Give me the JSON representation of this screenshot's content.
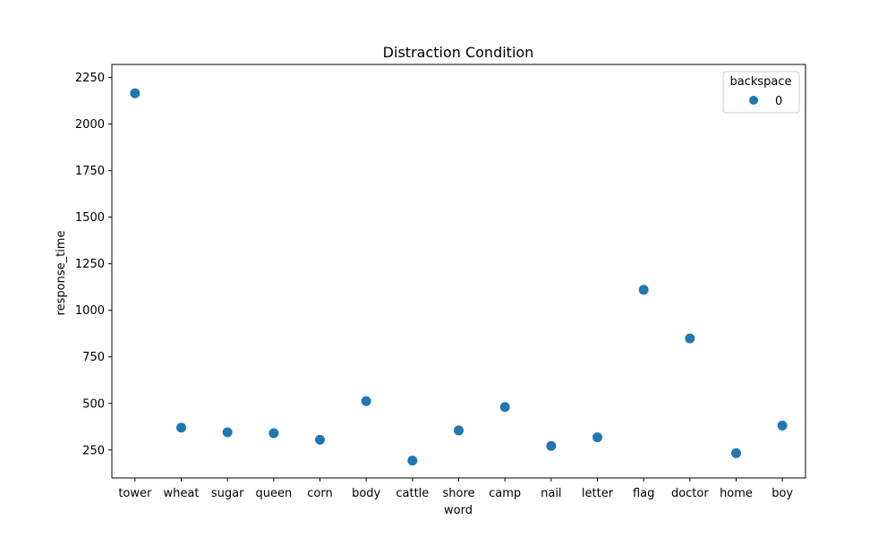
{
  "chart_data": {
    "type": "scatter",
    "title": "Distraction Condition",
    "xlabel": "word",
    "ylabel": "response_time",
    "categories": [
      "tower",
      "wheat",
      "sugar",
      "queen",
      "corn",
      "body",
      "cattle",
      "shore",
      "camp",
      "nail",
      "letter",
      "flag",
      "doctor",
      "home",
      "boy"
    ],
    "ylim": [
      100,
      2320
    ],
    "yticks": [
      250,
      500,
      750,
      1000,
      1250,
      1500,
      1750,
      2000,
      2250
    ],
    "grid": false,
    "legend": {
      "title": "backspace",
      "placement": "top-right"
    },
    "series": [
      {
        "name": "0",
        "color": "#1f77b4",
        "values": [
          2165,
          370,
          345,
          340,
          305,
          512,
          193,
          355,
          481,
          272,
          318,
          1110,
          849,
          233,
          381
        ]
      }
    ]
  }
}
